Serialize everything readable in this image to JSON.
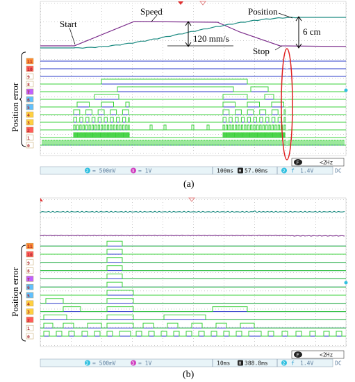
{
  "figure_a": {
    "caption": "(a)",
    "y_label": "Position error",
    "annotations": {
      "start": "Start",
      "speed": "Speed",
      "position": "Position",
      "speed_value": "120 mm/s",
      "position_value": "6 cm",
      "stop": "Stop"
    },
    "status": {
      "ch2": "2",
      "ch2_scale": "= 500mV",
      "ch3": "3",
      "ch3_scale": "= 1V",
      "timebase": "100ms",
      "h_badge": "H",
      "delay": "57.00ms",
      "trig_ch": "2",
      "trig_sym": "f",
      "trig_level": "1.4V",
      "coupling": "DC",
      "f_badge": "F",
      "freq": "<2Hz"
    },
    "digital_labels": [
      "0",
      "1",
      "2",
      "3",
      "4",
      "5",
      "6",
      "7",
      "8",
      "9",
      "10",
      "11"
    ]
  },
  "figure_b": {
    "caption": "(b)",
    "y_label": "Position error",
    "status": {
      "ch2": "2",
      "ch2_scale": "= 500mV",
      "ch3": "3",
      "ch3_scale": "= 1V",
      "timebase": "10ms",
      "h_badge": "H",
      "delay": "388.8ms",
      "trig_ch": "2",
      "trig_sym": "f",
      "trig_level": "1.4V",
      "coupling": "DC",
      "f_badge": "F",
      "freq": "<2Hz"
    },
    "digital_labels": [
      "0",
      "1",
      "2",
      "3",
      "4",
      "5",
      "6",
      "7",
      "8",
      "9",
      "10",
      "11"
    ]
  },
  "colors": {
    "grid_dot": "#c8c8c8",
    "digital_line": "#2838c8",
    "digital_active": "#38d038",
    "speed_trace": "#7a2a8a",
    "position_trace": "#1a8a80",
    "status_bar": "#e8f4f8",
    "status_text": "#6080a0",
    "highlight_ellipse": "#e02020"
  }
}
